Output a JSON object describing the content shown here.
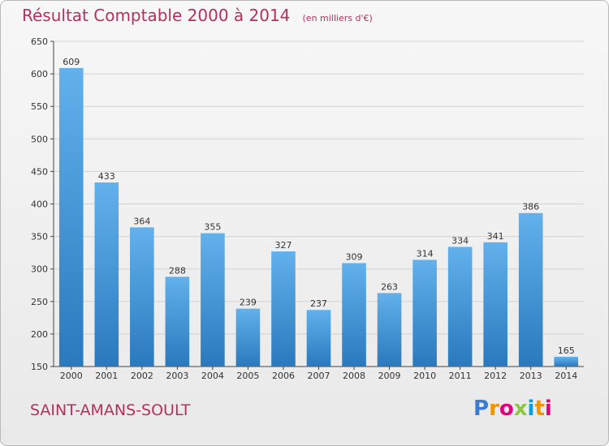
{
  "header": {
    "title": "Résultat Comptable 2000 à 2014",
    "subtitle": "(en milliers d'€)"
  },
  "footer": {
    "commune": "SAINT-AMANS-SOULT",
    "logo_letters": [
      "P",
      "r",
      "o",
      "x",
      "i",
      "t",
      "i"
    ],
    "logo_colors": [
      "#3a7bd5",
      "#f29400",
      "#e2007a",
      "#8cc63f",
      "#00a0e3",
      "#f29400",
      "#e2007a"
    ]
  },
  "colors": {
    "title": "#b6305c",
    "bar_light": "#62b1ec",
    "bar_dark": "#2a79bd",
    "grid": "#d2d2d2",
    "axis": "#444444"
  },
  "chart_data": {
    "type": "bar",
    "categories": [
      "2000",
      "2001",
      "2002",
      "2003",
      "2004",
      "2005",
      "2006",
      "2007",
      "2008",
      "2009",
      "2010",
      "2011",
      "2012",
      "2013",
      "2014"
    ],
    "values": [
      609,
      433,
      364,
      288,
      355,
      239,
      327,
      237,
      309,
      263,
      314,
      334,
      341,
      386,
      165
    ],
    "title": "Résultat Comptable 2000 à 2014",
    "xlabel": "",
    "ylabel": "",
    "ylim": [
      150,
      650
    ],
    "yticks": [
      150,
      200,
      250,
      300,
      350,
      400,
      450,
      500,
      550,
      600,
      650
    ],
    "grid": true
  }
}
